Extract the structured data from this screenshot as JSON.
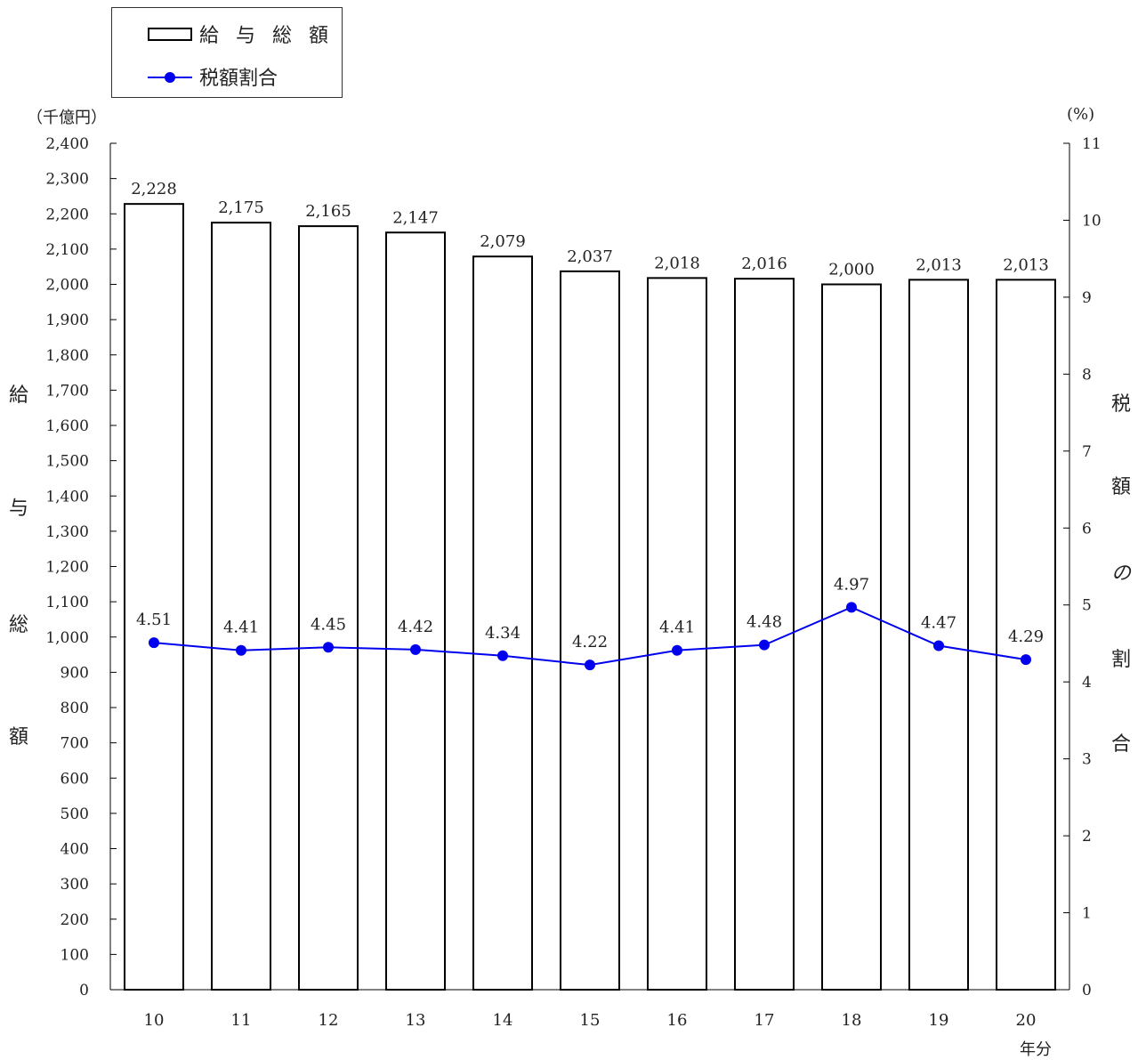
{
  "legend": {
    "bar_label": "給 与 総 額",
    "line_label": "税額割合"
  },
  "left_unit": "（千億円）",
  "right_unit": "(%)",
  "left_axis_title": [
    "給",
    "与",
    "総",
    "額"
  ],
  "right_axis_title": [
    "税",
    "額",
    "の",
    "割",
    "合"
  ],
  "x_unit": "年分",
  "chart_data": {
    "type": "bar",
    "categories": [
      "10",
      "11",
      "12",
      "13",
      "14",
      "15",
      "16",
      "17",
      "18",
      "19",
      "20"
    ],
    "series": [
      {
        "name": "給 与 総 額",
        "type": "bar",
        "axis": "left",
        "values": [
          2228,
          2175,
          2165,
          2147,
          2079,
          2037,
          2018,
          2016,
          2000,
          2013,
          2013
        ],
        "labels": [
          "2,228",
          "2,175",
          "2,165",
          "2,147",
          "2,079",
          "2,037",
          "2,018",
          "2,016",
          "2,000",
          "2,013",
          "2,013"
        ]
      },
      {
        "name": "税額割合",
        "type": "line",
        "axis": "right",
        "values": [
          4.51,
          4.41,
          4.45,
          4.42,
          4.34,
          4.22,
          4.41,
          4.48,
          4.97,
          4.47,
          4.29
        ],
        "labels": [
          "4.51",
          "4.41",
          "4.45",
          "4.42",
          "4.34",
          "4.22",
          "4.41",
          "4.48",
          "4.97",
          "4.47",
          "4.29"
        ]
      }
    ],
    "ylim_left": [
      0,
      2400
    ],
    "ylim_right": [
      0,
      11
    ],
    "left_ticks": [
      "0",
      "100",
      "200",
      "300",
      "400",
      "500",
      "600",
      "700",
      "800",
      "900",
      "1,000",
      "1,100",
      "1,200",
      "1,300",
      "1,400",
      "1,500",
      "1,600",
      "1,700",
      "1,800",
      "1,900",
      "2,000",
      "2,100",
      "2,200",
      "2,300",
      "2,400"
    ],
    "right_ticks": [
      "0",
      "1",
      "2",
      "3",
      "4",
      "5",
      "6",
      "7",
      "8",
      "9",
      "10",
      "11"
    ],
    "bar_fill": "#ffffff",
    "bar_stroke": "#000000",
    "line_color": "#0000ee",
    "grid": false,
    "legend_position": "top-left"
  }
}
